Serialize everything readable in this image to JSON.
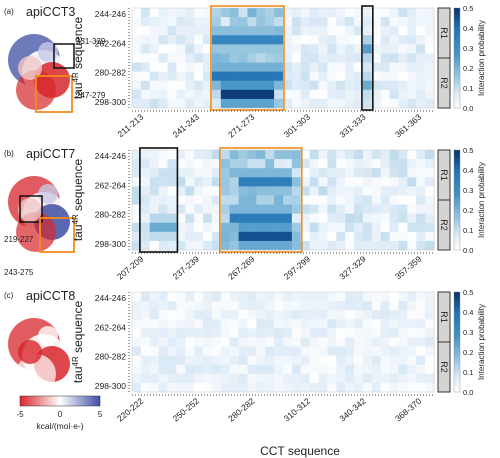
{
  "colors": {
    "heat_low": "#ffffff",
    "heat_high": "#08306b",
    "highlight_orange": "#f28c1b",
    "highlight_black": "#111111",
    "region_box": "#d4d4d4",
    "surface_negative": "#d7262b",
    "surface_neutral": "#ffffff",
    "surface_positive": "#3e4da3"
  },
  "chart_data": [
    {
      "type": "heatmap",
      "panel": "(a)",
      "protein": "apiCCT3",
      "structure_labels": [
        "331-339",
        "247-279"
      ],
      "ylabel": "tau4R sequence",
      "xlabel": "",
      "y_ticks": [
        "244-246",
        "262-264",
        "280-282",
        "298-300"
      ],
      "x_ticks": [
        "211-213",
        "241-243",
        "271-273",
        "301-303",
        "331-333",
        "361-363"
      ],
      "regions": [
        "R1",
        "R2"
      ],
      "colorbar": {
        "label": "Interaction probability",
        "ticks": [
          "0.0",
          "0.1",
          "0.2",
          "0.3",
          "0.4",
          "0.5"
        ],
        "range": [
          0,
          0.5
        ]
      },
      "hotspots": [
        {
          "x_col": [
            9,
            10,
            11,
            12,
            13,
            14,
            15,
            16
          ],
          "y_row": 3,
          "value": 0.32
        },
        {
          "x_col": [
            9,
            10,
            11,
            12,
            13,
            14,
            15,
            16
          ],
          "y_row": 7,
          "value": 0.38
        },
        {
          "x_col": [
            10,
            11,
            12,
            13,
            14,
            15
          ],
          "y_row": 9,
          "value": 0.48
        },
        {
          "x_col": [
            26
          ],
          "y_row": 4,
          "value": 0.25
        },
        {
          "x_col": [
            26
          ],
          "y_row": 8,
          "value": 0.22
        }
      ]
    },
    {
      "type": "heatmap",
      "panel": "(b)",
      "protein": "apiCCT7",
      "structure_labels": [
        "219-227",
        "243-275"
      ],
      "ylabel": "tau4R sequence",
      "xlabel": "",
      "y_ticks": [
        "244-246",
        "262-264",
        "280-282",
        "298-300"
      ],
      "x_ticks": [
        "207-209",
        "237-239",
        "267-269",
        "297-299",
        "327-329",
        "357-359"
      ],
      "regions": [
        "R1",
        "R2"
      ],
      "colorbar": {
        "label": "Interaction probability",
        "ticks": [
          "0.0",
          "0.1",
          "0.2",
          "0.3",
          "0.4",
          "0.5"
        ],
        "range": [
          0,
          0.5
        ]
      },
      "hotspots": [
        {
          "x_col": [
            12,
            13,
            14,
            15,
            16,
            17
          ],
          "y_row": 3,
          "value": 0.35
        },
        {
          "x_col": [
            11,
            12,
            13,
            14,
            15,
            16,
            17
          ],
          "y_row": 7,
          "value": 0.36
        },
        {
          "x_col": [
            12,
            13,
            14,
            15,
            16,
            17
          ],
          "y_row": 9,
          "value": 0.45
        },
        {
          "x_col": [
            2,
            3,
            4
          ],
          "y_row": 8,
          "value": 0.22
        }
      ]
    },
    {
      "type": "heatmap",
      "panel": "(c)",
      "protein": "apiCCT8",
      "ylabel": "tau4R sequence",
      "xlabel": "CCT sequence",
      "y_ticks": [
        "244-246",
        "262-264",
        "280-282",
        "298-300"
      ],
      "x_ticks": [
        "220-222",
        "250-252",
        "280-282",
        "310-312",
        "340-342",
        "368-370"
      ],
      "regions": [
        "R1",
        "R2"
      ],
      "colorbar": {
        "label": "Interaction probability",
        "ticks": [
          "0.0",
          "0.1",
          "0.2",
          "0.3",
          "0.4",
          "0.5"
        ],
        "range": [
          0,
          0.5
        ]
      },
      "hotspots": [
        {
          "x_col": [
            3,
            8,
            12,
            14,
            17,
            20
          ],
          "y_row": 4,
          "value": 0.07
        },
        {
          "x_col": [
            3,
            6,
            9,
            15,
            18,
            24,
            30
          ],
          "y_row": 8,
          "value": 0.08
        }
      ]
    }
  ],
  "energy_colorbar": {
    "ticks": [
      "-5",
      "0",
      "5"
    ],
    "unit": "kcal/(mol·e-)"
  }
}
